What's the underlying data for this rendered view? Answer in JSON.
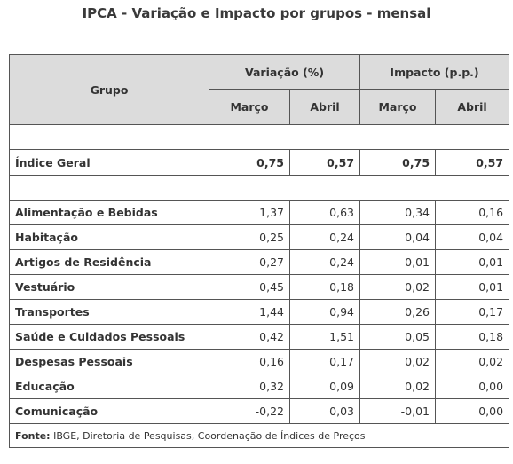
{
  "title": "IPCA - Variação e Impacto por grupos - mensal",
  "header": {
    "grupo": "Grupo",
    "variacao": "Variação (%)",
    "impacto": "Impacto (p.p.)",
    "months": [
      "Março",
      "Abril",
      "Março",
      "Abril"
    ]
  },
  "indice_geral": {
    "label": "Índice Geral",
    "values": [
      "0,75",
      "0,57",
      "0,75",
      "0,57"
    ]
  },
  "rows": [
    {
      "label": "Alimentação e Bebidas",
      "values": [
        "1,37",
        "0,63",
        "0,34",
        "0,16"
      ]
    },
    {
      "label": "Habitação",
      "values": [
        "0,25",
        "0,24",
        "0,04",
        "0,04"
      ]
    },
    {
      "label": "Artigos de Residência",
      "values": [
        "0,27",
        "-0,24",
        "0,01",
        "-0,01"
      ]
    },
    {
      "label": "Vestuário",
      "values": [
        "0,45",
        "0,18",
        "0,02",
        "0,01"
      ]
    },
    {
      "label": "Transportes",
      "values": [
        "1,44",
        "0,94",
        "0,26",
        "0,17"
      ]
    },
    {
      "label": "Saúde e Cuidados Pessoais",
      "values": [
        "0,42",
        "1,51",
        "0,05",
        "0,18"
      ]
    },
    {
      "label": "Despesas Pessoais",
      "values": [
        "0,16",
        "0,17",
        "0,02",
        "0,02"
      ]
    },
    {
      "label": "Educação",
      "values": [
        "0,32",
        "0,09",
        "0,02",
        "0,00"
      ]
    },
    {
      "label": "Comunicação",
      "values": [
        "-0,22",
        "0,03",
        "-0,01",
        "0,00"
      ]
    }
  ],
  "source": {
    "label": "Fonte:",
    "text": " IBGE, Diretoria de Pesquisas, Coordenação de Índices de Preços"
  }
}
